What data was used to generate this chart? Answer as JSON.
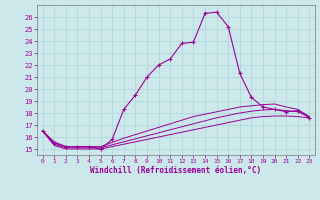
{
  "title": "",
  "xlabel": "Windchill (Refroidissement éolien,°C)",
  "ylabel": "",
  "xlim": [
    -0.5,
    23.5
  ],
  "ylim": [
    14.5,
    27.0
  ],
  "yticks": [
    15,
    16,
    17,
    18,
    19,
    20,
    21,
    22,
    23,
    24,
    25,
    26
  ],
  "xticks": [
    0,
    1,
    2,
    3,
    4,
    5,
    6,
    7,
    8,
    9,
    10,
    11,
    12,
    13,
    14,
    15,
    16,
    17,
    18,
    19,
    20,
    21,
    22,
    23
  ],
  "background_color": "#cce8ea",
  "line_color": "#990099",
  "grid_color": "#b0d8dc",
  "series": [
    [
      0,
      16.5
    ],
    [
      1,
      15.5
    ],
    [
      2,
      15.2
    ],
    [
      3,
      15.2
    ],
    [
      4,
      15.2
    ],
    [
      5,
      15.0
    ],
    [
      6,
      15.8
    ],
    [
      7,
      18.3
    ],
    [
      8,
      19.5
    ],
    [
      9,
      21.0
    ],
    [
      10,
      22.0
    ],
    [
      11,
      22.5
    ],
    [
      12,
      23.8
    ],
    [
      13,
      23.9
    ],
    [
      14,
      26.3
    ],
    [
      15,
      26.4
    ],
    [
      16,
      25.2
    ],
    [
      17,
      21.3
    ],
    [
      18,
      19.3
    ],
    [
      19,
      18.5
    ],
    [
      20,
      18.3
    ],
    [
      21,
      18.1
    ],
    [
      22,
      18.2
    ],
    [
      23,
      17.6
    ]
  ],
  "flat_series1": [
    [
      0,
      16.5
    ],
    [
      1,
      15.6
    ],
    [
      2,
      15.2
    ],
    [
      3,
      15.2
    ],
    [
      4,
      15.2
    ],
    [
      5,
      15.2
    ],
    [
      6,
      15.55
    ],
    [
      7,
      15.9
    ],
    [
      8,
      16.2
    ],
    [
      9,
      16.5
    ],
    [
      10,
      16.8
    ],
    [
      11,
      17.1
    ],
    [
      12,
      17.4
    ],
    [
      13,
      17.7
    ],
    [
      14,
      17.9
    ],
    [
      15,
      18.1
    ],
    [
      16,
      18.3
    ],
    [
      17,
      18.5
    ],
    [
      18,
      18.6
    ],
    [
      19,
      18.7
    ],
    [
      20,
      18.75
    ],
    [
      21,
      18.5
    ],
    [
      22,
      18.3
    ],
    [
      23,
      17.7
    ]
  ],
  "flat_series2": [
    [
      0,
      16.5
    ],
    [
      1,
      15.4
    ],
    [
      2,
      15.1
    ],
    [
      3,
      15.1
    ],
    [
      4,
      15.1
    ],
    [
      5,
      15.1
    ],
    [
      6,
      15.35
    ],
    [
      7,
      15.6
    ],
    [
      8,
      15.85
    ],
    [
      9,
      16.1
    ],
    [
      10,
      16.35
    ],
    [
      11,
      16.6
    ],
    [
      12,
      16.85
    ],
    [
      13,
      17.1
    ],
    [
      14,
      17.35
    ],
    [
      15,
      17.6
    ],
    [
      16,
      17.8
    ],
    [
      17,
      18.0
    ],
    [
      18,
      18.15
    ],
    [
      19,
      18.25
    ],
    [
      20,
      18.3
    ],
    [
      21,
      18.2
    ],
    [
      22,
      18.1
    ],
    [
      23,
      17.7
    ]
  ],
  "flat_series3": [
    [
      0,
      16.5
    ],
    [
      1,
      15.3
    ],
    [
      2,
      15.0
    ],
    [
      3,
      15.0
    ],
    [
      4,
      15.0
    ],
    [
      5,
      15.0
    ],
    [
      6,
      15.2
    ],
    [
      7,
      15.4
    ],
    [
      8,
      15.6
    ],
    [
      9,
      15.8
    ],
    [
      10,
      16.0
    ],
    [
      11,
      16.2
    ],
    [
      12,
      16.4
    ],
    [
      13,
      16.6
    ],
    [
      14,
      16.8
    ],
    [
      15,
      17.0
    ],
    [
      16,
      17.2
    ],
    [
      17,
      17.4
    ],
    [
      18,
      17.6
    ],
    [
      19,
      17.7
    ],
    [
      20,
      17.75
    ],
    [
      21,
      17.75
    ],
    [
      22,
      17.7
    ],
    [
      23,
      17.6
    ]
  ]
}
